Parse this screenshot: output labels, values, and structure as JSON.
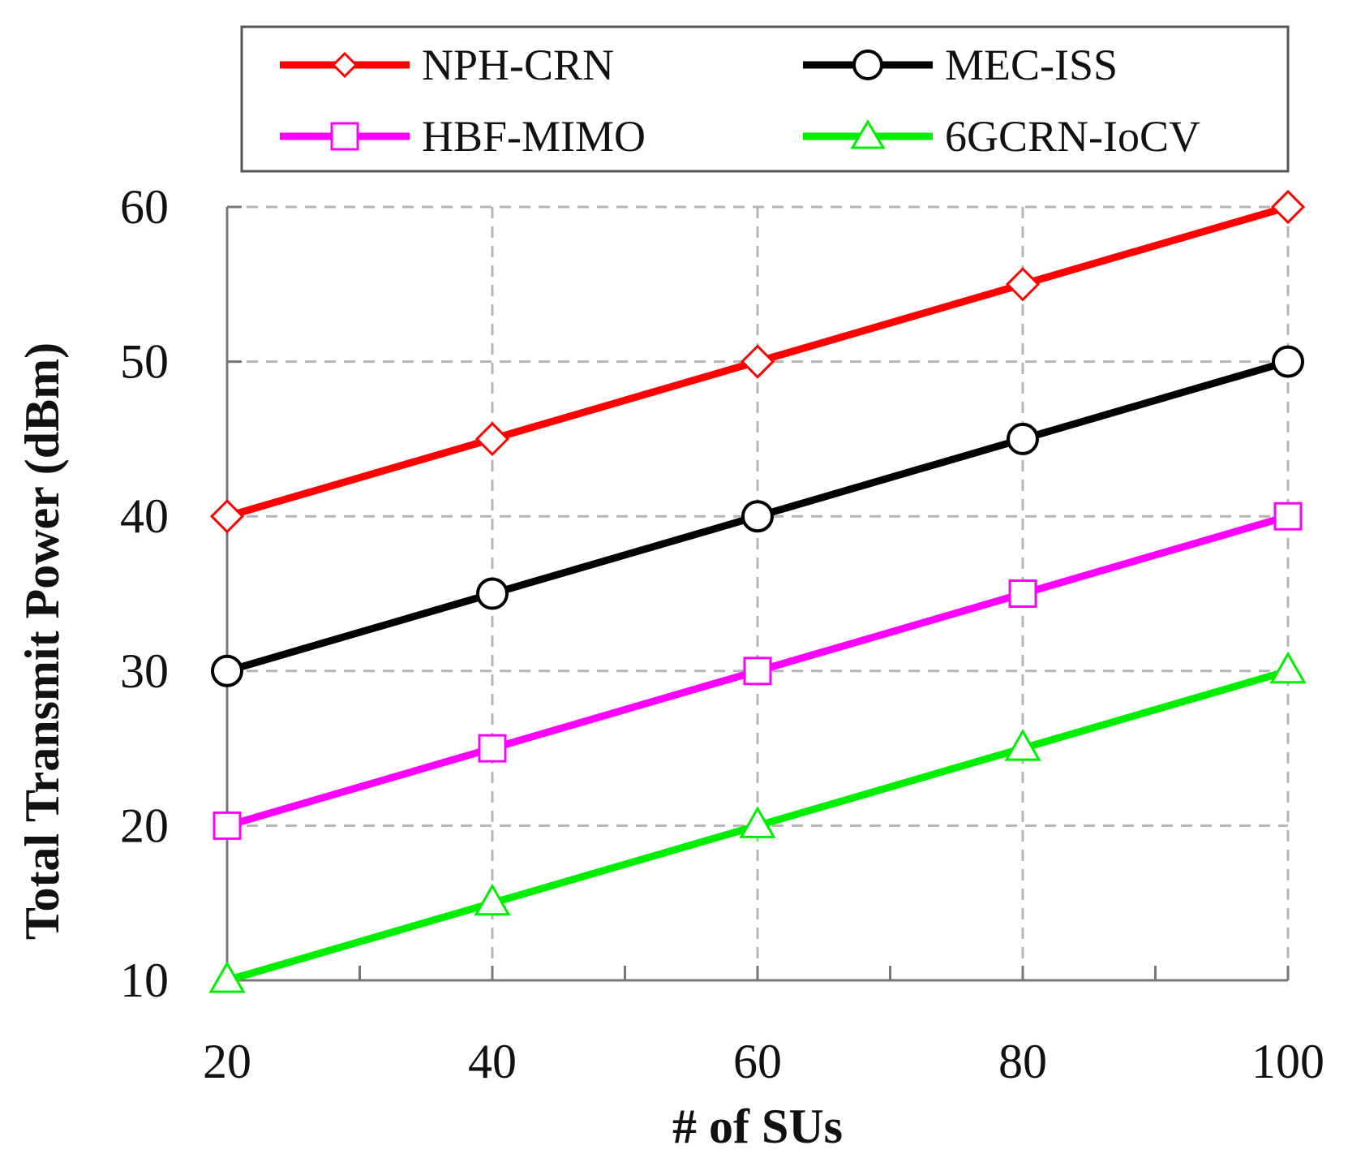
{
  "chart_data": {
    "type": "line",
    "title": "",
    "xlabel": "# of SUs",
    "ylabel": "Total Transmit Power (dBm)",
    "x": [
      20,
      40,
      60,
      80,
      100
    ],
    "xticks": [
      "20",
      "40",
      "60",
      "80",
      "100"
    ],
    "yticks": [
      "10",
      "20",
      "30",
      "40",
      "50",
      "60"
    ],
    "xlim": [
      20,
      100
    ],
    "ylim": [
      10,
      60
    ],
    "grid": true,
    "legend_position": "top",
    "series": [
      {
        "name": "NPH-CRN",
        "color": "#ff0000",
        "marker": "diamond",
        "values": [
          40,
          45,
          50,
          55,
          60
        ]
      },
      {
        "name": "MEC-ISS",
        "color": "#000000",
        "marker": "circle",
        "values": [
          30,
          35,
          40,
          45,
          50
        ]
      },
      {
        "name": "HBF-MIMO",
        "color": "#ff00ff",
        "marker": "square",
        "values": [
          20,
          25,
          30,
          35,
          40
        ]
      },
      {
        "name": "6GCRN-IoCV",
        "color": "#00ee00",
        "marker": "triangle",
        "values": [
          10,
          15,
          20,
          25,
          30
        ]
      }
    ]
  }
}
